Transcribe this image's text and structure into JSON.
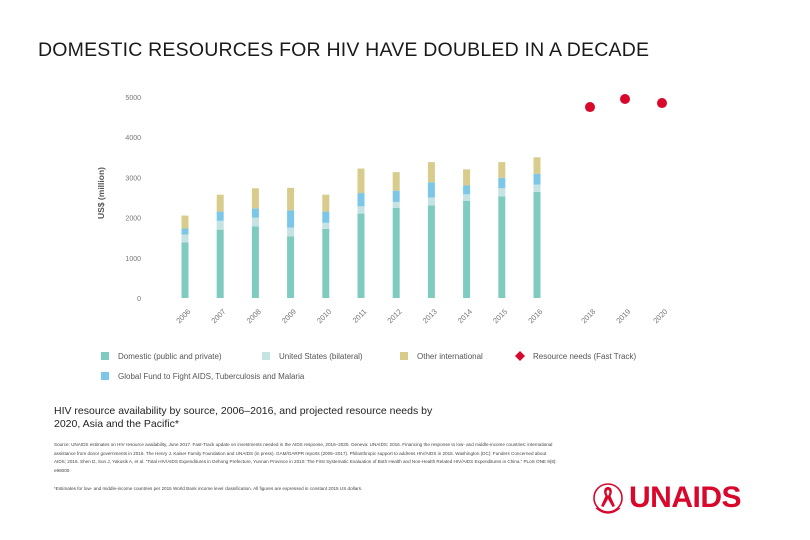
{
  "title": "DOMESTIC RESOURCES FOR HIV HAVE DOUBLED IN A DECADE",
  "chart_data": {
    "type": "bar",
    "stacked": true,
    "ylabel": "US$ (million)",
    "ylim": [
      0,
      5000
    ],
    "yticks": [
      "0",
      "1000",
      "2000",
      "3000",
      "4000",
      "5000"
    ],
    "categories": [
      "2006",
      "2007",
      "2008",
      "2009",
      "2010",
      "2011",
      "2012",
      "2013",
      "2014",
      "2015",
      "2016"
    ],
    "series": [
      {
        "name": "Domestic (public and private)",
        "color": "#7fcbbf",
        "values": [
          1380,
          1700,
          1780,
          1530,
          1720,
          2100,
          2240,
          2300,
          2420,
          2530,
          2640
        ]
      },
      {
        "name": "United States (bilateral)",
        "color": "#c4e3e2",
        "values": [
          200,
          220,
          220,
          220,
          150,
          180,
          150,
          200,
          160,
          200,
          180
        ]
      },
      {
        "name": "Global Fund to Fight AIDS, Tuberculosis and Malaria",
        "color": "#7cc7e8",
        "values": [
          150,
          230,
          230,
          430,
          280,
          330,
          280,
          380,
          220,
          260,
          270
        ]
      },
      {
        "name": "Other international",
        "color": "#d7cc8b",
        "values": [
          320,
          420,
          500,
          560,
          420,
          610,
          460,
          500,
          400,
          390,
          410
        ]
      }
    ],
    "needs": {
      "name": "Resource needs (Fast Track)",
      "color": "#d8072b",
      "categories": [
        "2018",
        "2019",
        "2020"
      ],
      "values": [
        4750,
        4950,
        4850
      ]
    },
    "legend_position": "bottom"
  },
  "caption": "HIV resource availability by source, 2006–2016, and projected resource needs by 2020, Asia and the Pacific*",
  "source": "Source: UNAIDS estimates on HIV resource availability, June 2017. Fast-Track update on investments needed in the AIDS response, 2016–2030. Geneva: UNAIDS; 2016. Financing the response to low- and middle-income countries: international assistance from donor governments in 2016. The Henry J. Kaiser Family Foundation and UNAIDS (in press). GAM/GARPR reports (2005–2017). Philanthropic support to address HIV/AIDS in 2015. Washington (DC): Funders Concerned about AIDS; 2016. Shen D, Sun J, Yakusik A, et al. “Total HIV/AIDS Expenditures in Dehong Prefecture, Yunnan Province in 2010: The First Systematic Evaluation of Both Health and Non-Health Related HIV/AIDS Expenditures in China.” PLoS ONE 9(8): e98000.",
  "footnote": "*Estimates for low- and middle-income countries per 2015 World Bank income level classification. All figures are expressed in constant 2015 US dollars.",
  "logo": {
    "text": "UNAIDS"
  }
}
